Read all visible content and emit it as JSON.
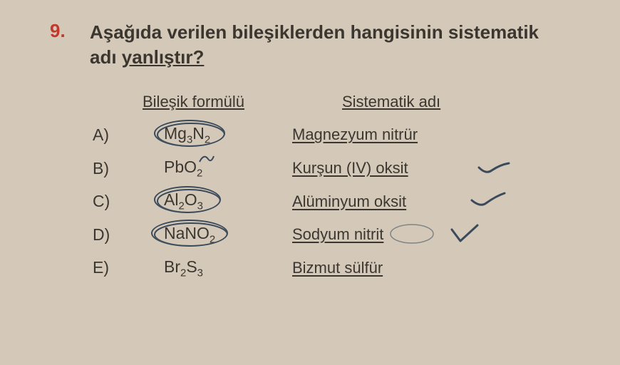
{
  "question_number": "9.",
  "question_text_l1": "Aşağıda verilen bileşiklerden hangisinin sistematik",
  "question_text_l2a": "adı ",
  "question_text_l2b": "yanlıştır?",
  "headers": {
    "formula": "Bileşik formülü",
    "name": "Sistematik adı"
  },
  "options": [
    {
      "label": "A)",
      "formula_html": "Mg<sub>3</sub>N<sub>2</sub>",
      "name": "Magnezyum nitrür",
      "circled": true
    },
    {
      "label": "B)",
      "formula_html": "PbO<sub>2</sub>",
      "name": "Kurşun (IV) oksit",
      "circled": false
    },
    {
      "label": "C)",
      "formula_html": "Al<sub>2</sub>O<sub>3</sub>",
      "name": "Alüminyum oksit",
      "circled": true
    },
    {
      "label": "D)",
      "formula_html": "NaNO<sub>2</sub>",
      "name": "Sodyum nitrit",
      "circled": true
    },
    {
      "label": "E)",
      "formula_html": "Br<sub>2</sub>S<sub>3</sub>",
      "name": "Bizmut sülfür",
      "circled": false
    }
  ],
  "colors": {
    "background": "#d4c9b8",
    "text": "#3b3730",
    "accent": "#c1392b",
    "pen": "#3a4a5a"
  }
}
